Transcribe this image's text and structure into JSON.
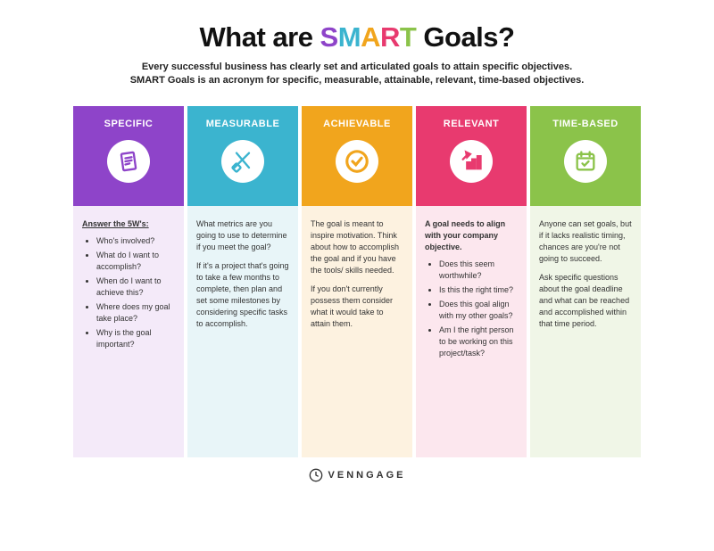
{
  "title": {
    "prefix": "What are ",
    "acronym": [
      {
        "letter": "S",
        "color": "#8e44c9"
      },
      {
        "letter": "M",
        "color": "#3bb4cf"
      },
      {
        "letter": "A",
        "color": "#f1a51d"
      },
      {
        "letter": "R",
        "color": "#e83a6f"
      },
      {
        "letter": "T",
        "color": "#8bc34a"
      }
    ],
    "suffix": " Goals?"
  },
  "subtitle_line1": "Every successful business has clearly set and articulated goals to attain specific objectives.",
  "subtitle_line2": "SMART Goals is an acronym for specific, measurable, attainable, relevant, time-based objectives.",
  "columns": [
    {
      "key": "specific",
      "label": "SPECIFIC",
      "header_color": "#8e44c9",
      "body_color": "#f4eaf9",
      "icon": "clipboard",
      "lead": "Answer the 5W's:",
      "lead_underline": true,
      "bullets": [
        "Who's involved?",
        "What do I want to accomplish?",
        "When do I want to achieve this?",
        "Where does my goal take place?",
        "Why is the goal important?"
      ],
      "paragraphs": []
    },
    {
      "key": "measurable",
      "label": "MEASURABLE",
      "header_color": "#3bb4cf",
      "body_color": "#e8f5f8",
      "icon": "ruler",
      "lead": "",
      "lead_underline": false,
      "bullets": [],
      "paragraphs": [
        "What metrics are you going to use to determine if you meet the goal?",
        "If it's a project that's going to take a few months to complete, then plan and set some milestones by considering specific tasks to accomplish."
      ]
    },
    {
      "key": "achievable",
      "label": "ACHIEVABLE",
      "header_color": "#f1a51d",
      "body_color": "#fdf2e0",
      "icon": "check",
      "lead": "",
      "lead_underline": false,
      "bullets": [],
      "paragraphs": [
        "The goal is meant to inspire motivation. Think about how to accomplish the goal and if you have the tools/ skills needed.",
        "If you don't currently possess them consider what it would take to attain them."
      ]
    },
    {
      "key": "relevant",
      "label": "RELEVANT",
      "header_color": "#e83a6f",
      "body_color": "#fce7ee",
      "icon": "chart",
      "lead": "A goal needs to align with your company objective.",
      "lead_underline": false,
      "bullets": [
        "Does this seem worthwhile?",
        "Is this the right time?",
        "Does this goal align with my other goals?",
        "Am I the right person to be working on this project/task?"
      ],
      "paragraphs": []
    },
    {
      "key": "timebased",
      "label": "TIME-BASED",
      "header_color": "#8bc34a",
      "body_color": "#f0f6e7",
      "icon": "calendar",
      "lead": "",
      "lead_underline": false,
      "bullets": [],
      "paragraphs": [
        "Anyone can set goals, but if it lacks realistic timing, chances are you're not going to succeed.",
        "Ask specific questions about the goal deadline and what can be reached and accomplished within that time period."
      ]
    }
  ],
  "footer_label": "VENNGAGE"
}
